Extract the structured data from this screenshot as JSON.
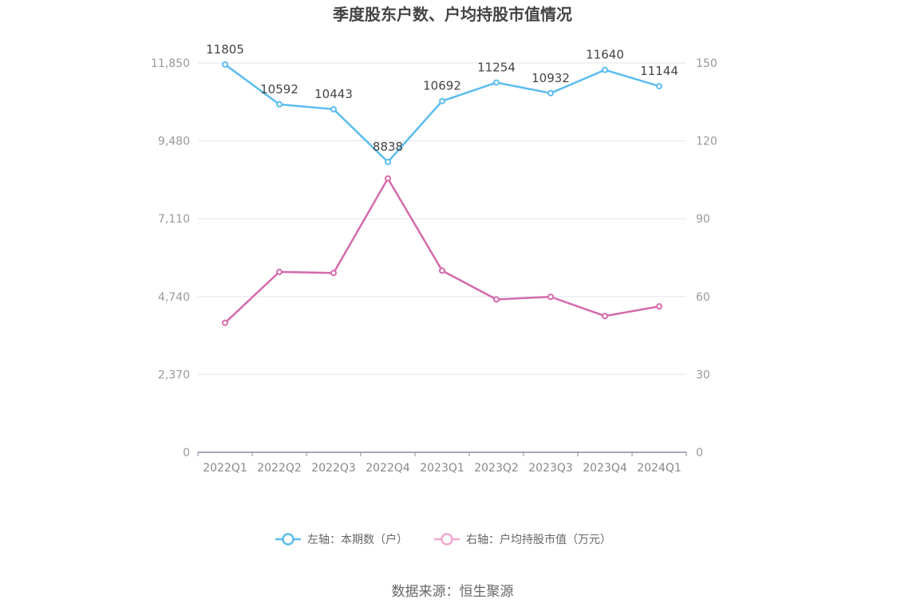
{
  "chart_data": {
    "type": "line",
    "title": "季度股东户数、户均持股市值情况",
    "categories": [
      "2022Q1",
      "2022Q2",
      "2022Q3",
      "2022Q4",
      "2023Q1",
      "2023Q2",
      "2023Q3",
      "2023Q4",
      "2024Q1"
    ],
    "y_left": {
      "ticks": [
        "0",
        "2,370",
        "4,740",
        "7,110",
        "9,480",
        "11,850"
      ],
      "range": [
        0,
        11850
      ]
    },
    "y_right": {
      "ticks": [
        "0",
        "30",
        "60",
        "90",
        "120",
        "150"
      ],
      "range": [
        0,
        150
      ]
    },
    "series": [
      {
        "name": "左轴：本期数（户）",
        "axis": "left",
        "color": "#5bbcf0",
        "values": [
          11805,
          10592,
          10443,
          8838,
          10692,
          11254,
          10932,
          11640,
          11144
        ],
        "labels": [
          "11805",
          "10592",
          "10443",
          "8838",
          "10692",
          "11254",
          "10932",
          "11640",
          "11144"
        ]
      },
      {
        "name": "右轴：户均持股市值（万元）",
        "axis": "right",
        "color": "#d46aad",
        "legend_color": "#f0a8cf",
        "values": [
          49.9,
          69.5,
          69.1,
          105.5,
          70.0,
          58.9,
          59.9,
          52.5,
          56.2
        ]
      }
    ],
    "grid": true,
    "legend_position": "bottom"
  },
  "source": "数据来源：恒生聚源"
}
